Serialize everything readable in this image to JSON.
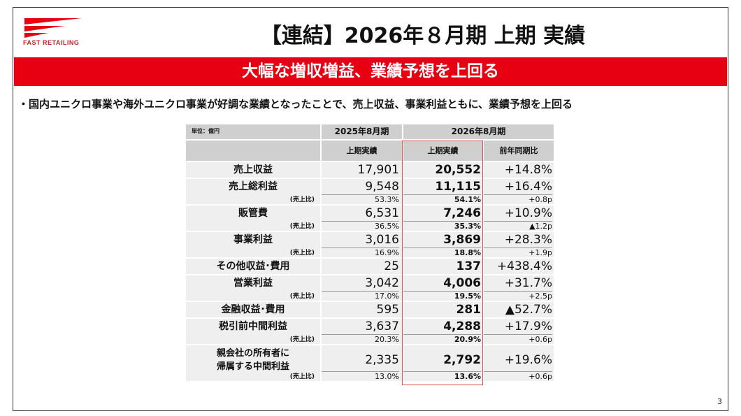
{
  "logo": {
    "text": "FAST RETAILING",
    "color": "#c8202a"
  },
  "title": "【連結】2026年８月期 上期 実績",
  "banner": {
    "text": "大幅な増収増益、業績予想を上回る",
    "color": "#e60012"
  },
  "bullet": "・国内ユニクロ事業や海外ユニクロ事業が好調な業績となったことで、売上収益、事業利益ともに、業績予想を上回る",
  "table": {
    "unit": "単位：億円",
    "fy2025": "2025年8月期",
    "fy2026": "2026年8月期",
    "sub1": "上期実績",
    "sub2": "上期実績",
    "sub3": "前年同期比",
    "ratio_label": "(売上比)",
    "rows": [
      {
        "label": "売上収益",
        "v1": "17,901",
        "v2": "20,552",
        "v3": "+14.8%"
      },
      {
        "label": "売上総利益",
        "v1": "9,548",
        "v2": "11,115",
        "v3": "+16.4%",
        "r1": "53.3%",
        "r2": "54.1%",
        "r3": "+0.8p"
      },
      {
        "label": "販管費",
        "v1": "6,531",
        "v2": "7,246",
        "v3": "+10.9%",
        "r1": "36.5%",
        "r2": "35.3%",
        "r3": "▲1.2p"
      },
      {
        "label": "事業利益",
        "v1": "3,016",
        "v2": "3,869",
        "v3": "+28.3%",
        "r1": "16.9%",
        "r2": "18.8%",
        "r3": "+1.9p"
      },
      {
        "label": "その他収益･費用",
        "v1": "25",
        "v2": "137",
        "v3": "+438.4%"
      },
      {
        "label": "営業利益",
        "v1": "3,042",
        "v2": "4,006",
        "v3": "+31.7%",
        "r1": "17.0%",
        "r2": "19.5%",
        "r3": "+2.5p"
      },
      {
        "label": "金融収益･費用",
        "v1": "595",
        "v2": "281",
        "v3": "▲52.7%"
      },
      {
        "label": "税引前中間利益",
        "v1": "3,637",
        "v2": "4,288",
        "v3": "+17.9%",
        "r1": "20.3%",
        "r2": "20.9%",
        "r3": "+0.6p"
      },
      {
        "label": "親会社の所有者に\n帰属する中間利益",
        "v1": "2,335",
        "v2": "2,792",
        "v3": "+19.6%",
        "r1": "13.0%",
        "r2": "13.6%",
        "r3": "+0.6p"
      }
    ]
  },
  "page_number": "3"
}
